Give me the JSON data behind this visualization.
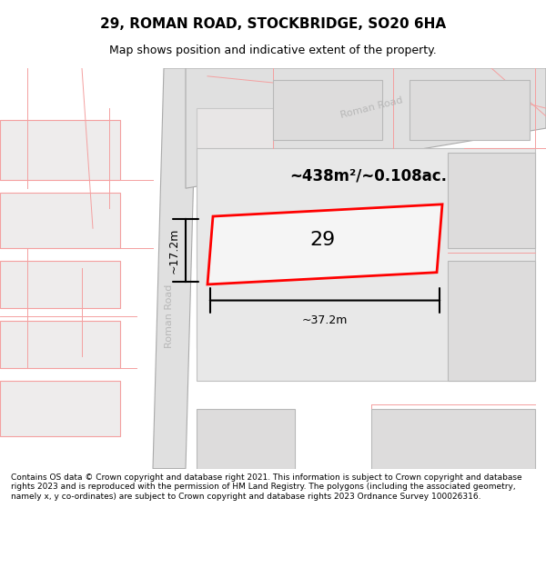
{
  "title": "29, ROMAN ROAD, STOCKBRIDGE, SO20 6HA",
  "subtitle": "Map shows position and indicative extent of the property.",
  "footer": "Contains OS data © Crown copyright and database right 2021. This information is subject to Crown copyright and database rights 2023 and is reproduced with the permission of HM Land Registry. The polygons (including the associated geometry, namely x, y co-ordinates) are subject to Crown copyright and database rights 2023 Ordnance Survey 100026316.",
  "bg_color": "#ffffff",
  "map_bg": "#f0eeee",
  "road_fill": "#e8e8e8",
  "road_stroke": "#c0c0c0",
  "building_fill": "#e0dede",
  "building_stroke": "#b0b0b0",
  "highlight_fill": "#f5f5f5",
  "highlight_stroke": "#ff0000",
  "pink_line": "#f4a0a0",
  "road_label_color": "#b0b0b0",
  "area_label": "~438m²/~0.108ac.",
  "property_label": "29",
  "dim_width": "~37.2m",
  "dim_height": "~17.2m",
  "roman_road_label": "Roman Road"
}
